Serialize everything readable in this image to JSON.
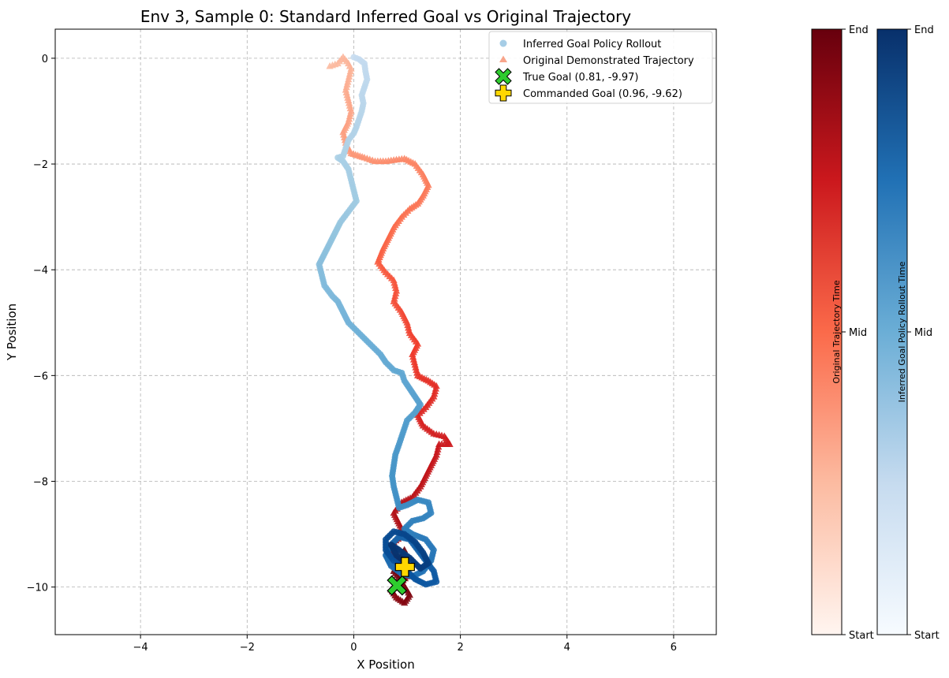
{
  "chart_data": {
    "type": "scatter",
    "title": "Env 3, Sample 0: Standard Inferred Goal vs Original Trajectory",
    "xlabel": "X Position",
    "ylabel": "Y Position",
    "xlim": [
      -5.6,
      6.8
    ],
    "ylim": [
      -10.9,
      0.55
    ],
    "xticks": [
      -4,
      -2,
      0,
      2,
      4,
      6
    ],
    "yticks": [
      0,
      -2,
      -4,
      -6,
      -8,
      -10
    ],
    "xtick_labels": [
      "−4",
      "−2",
      "0",
      "2",
      "4",
      "6"
    ],
    "ytick_labels": [
      "0",
      "−2",
      "−4",
      "−6",
      "−8",
      "−10"
    ],
    "grid": true,
    "legend_position": "top-right",
    "series": [
      {
        "name": "Inferred Goal Policy Rollout",
        "marker": "circle",
        "colormap": "Blues",
        "points": [
          [
            0.0,
            0.02
          ],
          [
            0.1,
            -0.02
          ],
          [
            0.2,
            -0.1
          ],
          [
            0.22,
            -0.25
          ],
          [
            0.25,
            -0.4
          ],
          [
            0.2,
            -0.55
          ],
          [
            0.15,
            -0.7
          ],
          [
            0.18,
            -0.85
          ],
          [
            0.15,
            -1.0
          ],
          [
            0.1,
            -1.15
          ],
          [
            0.05,
            -1.3
          ],
          [
            0.0,
            -1.42
          ],
          [
            -0.1,
            -1.55
          ],
          [
            -0.15,
            -1.7
          ],
          [
            -0.2,
            -1.85
          ],
          [
            -0.3,
            -1.88
          ],
          [
            -0.2,
            -1.95
          ],
          [
            -0.1,
            -2.1
          ],
          [
            -0.05,
            -2.3
          ],
          [
            0.0,
            -2.5
          ],
          [
            0.05,
            -2.7
          ],
          [
            -0.1,
            -2.9
          ],
          [
            -0.25,
            -3.1
          ],
          [
            -0.35,
            -3.3
          ],
          [
            -0.45,
            -3.5
          ],
          [
            -0.55,
            -3.7
          ],
          [
            -0.65,
            -3.9
          ],
          [
            -0.6,
            -4.1
          ],
          [
            -0.55,
            -4.3
          ],
          [
            -0.4,
            -4.5
          ],
          [
            -0.3,
            -4.6
          ],
          [
            -0.2,
            -4.8
          ],
          [
            -0.1,
            -5.0
          ],
          [
            0.05,
            -5.15
          ],
          [
            0.2,
            -5.3
          ],
          [
            0.35,
            -5.45
          ],
          [
            0.5,
            -5.6
          ],
          [
            0.6,
            -5.75
          ],
          [
            0.75,
            -5.9
          ],
          [
            0.9,
            -5.95
          ],
          [
            0.95,
            -6.1
          ],
          [
            1.05,
            -6.25
          ],
          [
            1.15,
            -6.4
          ],
          [
            1.25,
            -6.55
          ],
          [
            1.15,
            -6.7
          ],
          [
            1.0,
            -6.85
          ],
          [
            0.95,
            -7.0
          ],
          [
            0.9,
            -7.15
          ],
          [
            0.85,
            -7.3
          ],
          [
            0.78,
            -7.5
          ],
          [
            0.75,
            -7.7
          ],
          [
            0.72,
            -7.9
          ],
          [
            0.75,
            -8.1
          ],
          [
            0.8,
            -8.3
          ],
          [
            0.85,
            -8.5
          ],
          [
            1.0,
            -8.45
          ],
          [
            1.2,
            -8.35
          ],
          [
            1.4,
            -8.4
          ],
          [
            1.45,
            -8.6
          ],
          [
            1.3,
            -8.7
          ],
          [
            1.1,
            -8.75
          ],
          [
            0.95,
            -8.9
          ],
          [
            1.1,
            -9.0
          ],
          [
            1.35,
            -9.1
          ],
          [
            1.5,
            -9.3
          ],
          [
            1.45,
            -9.5
          ],
          [
            1.3,
            -9.7
          ],
          [
            1.1,
            -9.8
          ],
          [
            0.9,
            -9.75
          ],
          [
            0.7,
            -9.6
          ],
          [
            0.6,
            -9.4
          ],
          [
            0.7,
            -9.2
          ],
          [
            0.85,
            -9.05
          ],
          [
            1.05,
            -9.1
          ],
          [
            1.2,
            -9.3
          ],
          [
            1.35,
            -9.5
          ],
          [
            1.5,
            -9.7
          ],
          [
            1.55,
            -9.9
          ],
          [
            1.35,
            -9.95
          ],
          [
            1.15,
            -9.85
          ],
          [
            0.95,
            -9.65
          ],
          [
            0.75,
            -9.5
          ],
          [
            0.6,
            -9.3
          ],
          [
            0.6,
            -9.1
          ],
          [
            0.75,
            -8.95
          ],
          [
            0.95,
            -9.0
          ],
          [
            1.15,
            -9.15
          ],
          [
            1.3,
            -9.35
          ],
          [
            1.4,
            -9.55
          ],
          [
            1.25,
            -9.65
          ],
          [
            1.05,
            -9.45
          ],
          [
            0.85,
            -9.3
          ],
          [
            0.7,
            -9.2
          ],
          [
            0.8,
            -9.4
          ],
          [
            1.0,
            -9.55
          ]
        ]
      },
      {
        "name": "Original Demonstrated Trajectory",
        "marker": "triangle",
        "colormap": "Reds",
        "points": [
          [
            -0.45,
            -0.15
          ],
          [
            -0.3,
            -0.1
          ],
          [
            -0.2,
            0.02
          ],
          [
            -0.1,
            -0.1
          ],
          [
            -0.05,
            -0.2
          ],
          [
            -0.1,
            -0.4
          ],
          [
            -0.15,
            -0.6
          ],
          [
            -0.1,
            -0.8
          ],
          [
            -0.05,
            -1.0
          ],
          [
            -0.1,
            -1.2
          ],
          [
            -0.2,
            -1.4
          ],
          [
            -0.15,
            -1.6
          ],
          [
            -0.05,
            -1.8
          ],
          [
            0.2,
            -1.88
          ],
          [
            0.4,
            -1.95
          ],
          [
            0.6,
            -1.95
          ],
          [
            0.8,
            -1.92
          ],
          [
            0.95,
            -1.9
          ],
          [
            1.15,
            -2.0
          ],
          [
            1.3,
            -2.2
          ],
          [
            1.4,
            -2.4
          ],
          [
            1.3,
            -2.6
          ],
          [
            1.2,
            -2.75
          ],
          [
            1.05,
            -2.85
          ],
          [
            0.9,
            -3.0
          ],
          [
            0.75,
            -3.2
          ],
          [
            0.65,
            -3.4
          ],
          [
            0.55,
            -3.6
          ],
          [
            0.45,
            -3.85
          ],
          [
            0.6,
            -4.05
          ],
          [
            0.75,
            -4.2
          ],
          [
            0.8,
            -4.4
          ],
          [
            0.75,
            -4.6
          ],
          [
            0.9,
            -4.8
          ],
          [
            1.0,
            -5.0
          ],
          [
            1.05,
            -5.2
          ],
          [
            1.2,
            -5.4
          ],
          [
            1.1,
            -5.6
          ],
          [
            1.15,
            -5.8
          ],
          [
            1.2,
            -6.0
          ],
          [
            1.4,
            -6.1
          ],
          [
            1.55,
            -6.2
          ],
          [
            1.5,
            -6.4
          ],
          [
            1.35,
            -6.6
          ],
          [
            1.2,
            -6.75
          ],
          [
            1.3,
            -6.95
          ],
          [
            1.5,
            -7.1
          ],
          [
            1.7,
            -7.15
          ],
          [
            1.8,
            -7.3
          ],
          [
            1.6,
            -7.3
          ],
          [
            1.55,
            -7.5
          ],
          [
            1.45,
            -7.7
          ],
          [
            1.35,
            -7.9
          ],
          [
            1.25,
            -8.1
          ],
          [
            1.1,
            -8.3
          ],
          [
            0.9,
            -8.4
          ],
          [
            0.75,
            -8.6
          ],
          [
            0.85,
            -8.8
          ],
          [
            0.95,
            -9.0
          ],
          [
            0.75,
            -9.15
          ],
          [
            0.65,
            -9.3
          ],
          [
            0.8,
            -9.45
          ],
          [
            0.95,
            -9.6
          ],
          [
            1.0,
            -9.8
          ],
          [
            0.85,
            -9.95
          ],
          [
            0.7,
            -10.05
          ],
          [
            0.8,
            -10.2
          ],
          [
            0.95,
            -10.3
          ],
          [
            1.05,
            -10.15
          ],
          [
            0.9,
            -9.9
          ],
          [
            0.75,
            -9.7
          ],
          [
            0.85,
            -9.5
          ],
          [
            0.95,
            -9.3
          ]
        ]
      }
    ],
    "markers": [
      {
        "name": "True Goal (0.81, -9.97)",
        "x": 0.81,
        "y": -9.97,
        "symbol": "X",
        "color": "#2ecc2e"
      },
      {
        "name": "Commanded Goal (0.96, -9.62)",
        "x": 0.96,
        "y": -9.62,
        "symbol": "P",
        "color": "#ffd700"
      }
    ],
    "colorbars": [
      {
        "label": "Original Trajectory Time",
        "colormap": "Reds",
        "ticks": [
          "Start",
          "Mid",
          "End"
        ]
      },
      {
        "label": "Inferred Goal Policy Rollout Time",
        "colormap": "Blues",
        "ticks": [
          "Start",
          "Mid",
          "End"
        ]
      }
    ]
  }
}
